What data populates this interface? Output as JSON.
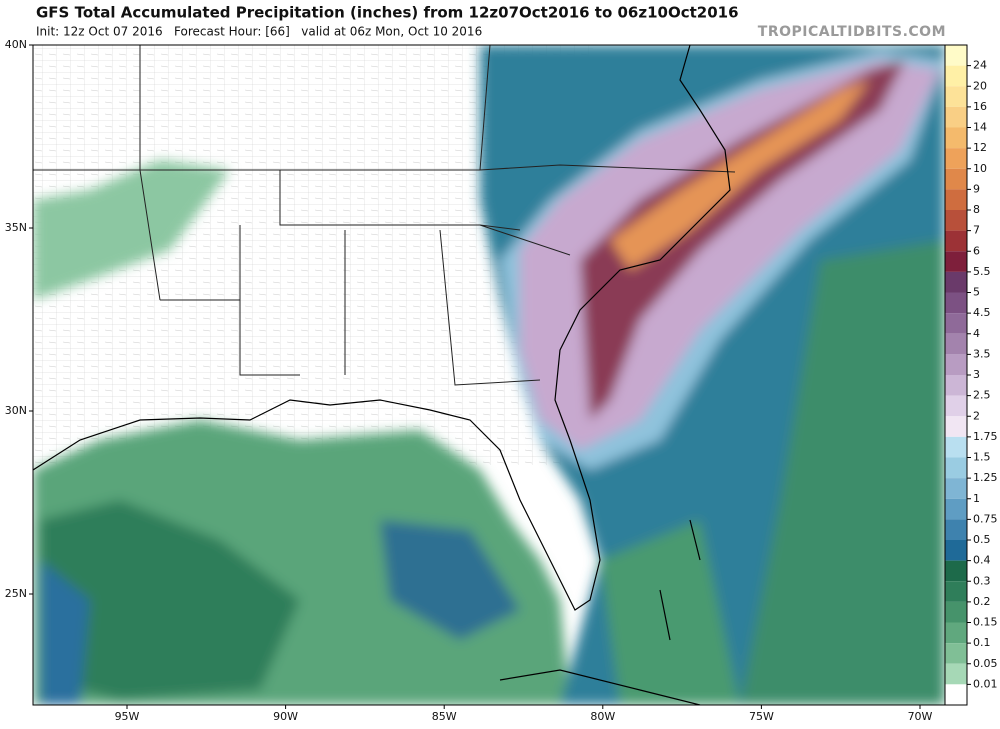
{
  "header": {
    "title": "GFS Total Accumulated Precipitation (inches) from 12z07Oct2016 to 06z10Oct2016",
    "subtitle": "Init: 12z Oct 07 2016   Forecast Hour: [66]   valid at 06z Mon, Oct 10 2016",
    "watermark": "TROPICALTIDBITS.COM"
  },
  "map": {
    "lat_labels": [
      "40N",
      "35N",
      "30N",
      "25N"
    ],
    "lon_labels": [
      "95W",
      "90W",
      "85W",
      "80W",
      "75W",
      "70W"
    ]
  },
  "colorbar": {
    "top_color": "#fffbc8",
    "levels": [
      {
        "label": "24",
        "color": "#fff0a6"
      },
      {
        "label": "20",
        "color": "#fde298"
      },
      {
        "label": "16",
        "color": "#f9cf85"
      },
      {
        "label": "14",
        "color": "#f4ba6c"
      },
      {
        "label": "12",
        "color": "#eea25a"
      },
      {
        "label": "10",
        "color": "#e0884a"
      },
      {
        "label": "9",
        "color": "#cf6d3f"
      },
      {
        "label": "8",
        "color": "#b8503a"
      },
      {
        "label": "7",
        "color": "#9c3236"
      },
      {
        "label": "6",
        "color": "#7e1f3b"
      },
      {
        "label": "5.5",
        "color": "#6a3a6a"
      },
      {
        "label": "5",
        "color": "#7c5183"
      },
      {
        "label": "4.5",
        "color": "#8f6a99"
      },
      {
        "label": "4",
        "color": "#a383ad"
      },
      {
        "label": "3.5",
        "color": "#b89cc2"
      },
      {
        "label": "3",
        "color": "#ccb6d6"
      },
      {
        "label": "2.5",
        "color": "#e0d0e8"
      },
      {
        "label": "2",
        "color": "#f1e6f3"
      },
      {
        "label": "1.75",
        "color": "#b9dff0"
      },
      {
        "label": "1.5",
        "color": "#9acce2"
      },
      {
        "label": "1.25",
        "color": "#7fb5d4"
      },
      {
        "label": "1",
        "color": "#5f9dc3"
      },
      {
        "label": "0.75",
        "color": "#3e82ae"
      },
      {
        "label": "0.5",
        "color": "#1f6a98"
      },
      {
        "label": "0.4",
        "color": "#1d6a4a"
      },
      {
        "label": "0.3",
        "color": "#2f7e5a"
      },
      {
        "label": "0.2",
        "color": "#46936b"
      },
      {
        "label": "0.15",
        "color": "#60a87e"
      },
      {
        "label": "0.1",
        "color": "#80bf96"
      },
      {
        "label": "0.05",
        "color": "#a6d8b6"
      },
      {
        "label": "0.01",
        "color": "#ffffff"
      }
    ]
  }
}
